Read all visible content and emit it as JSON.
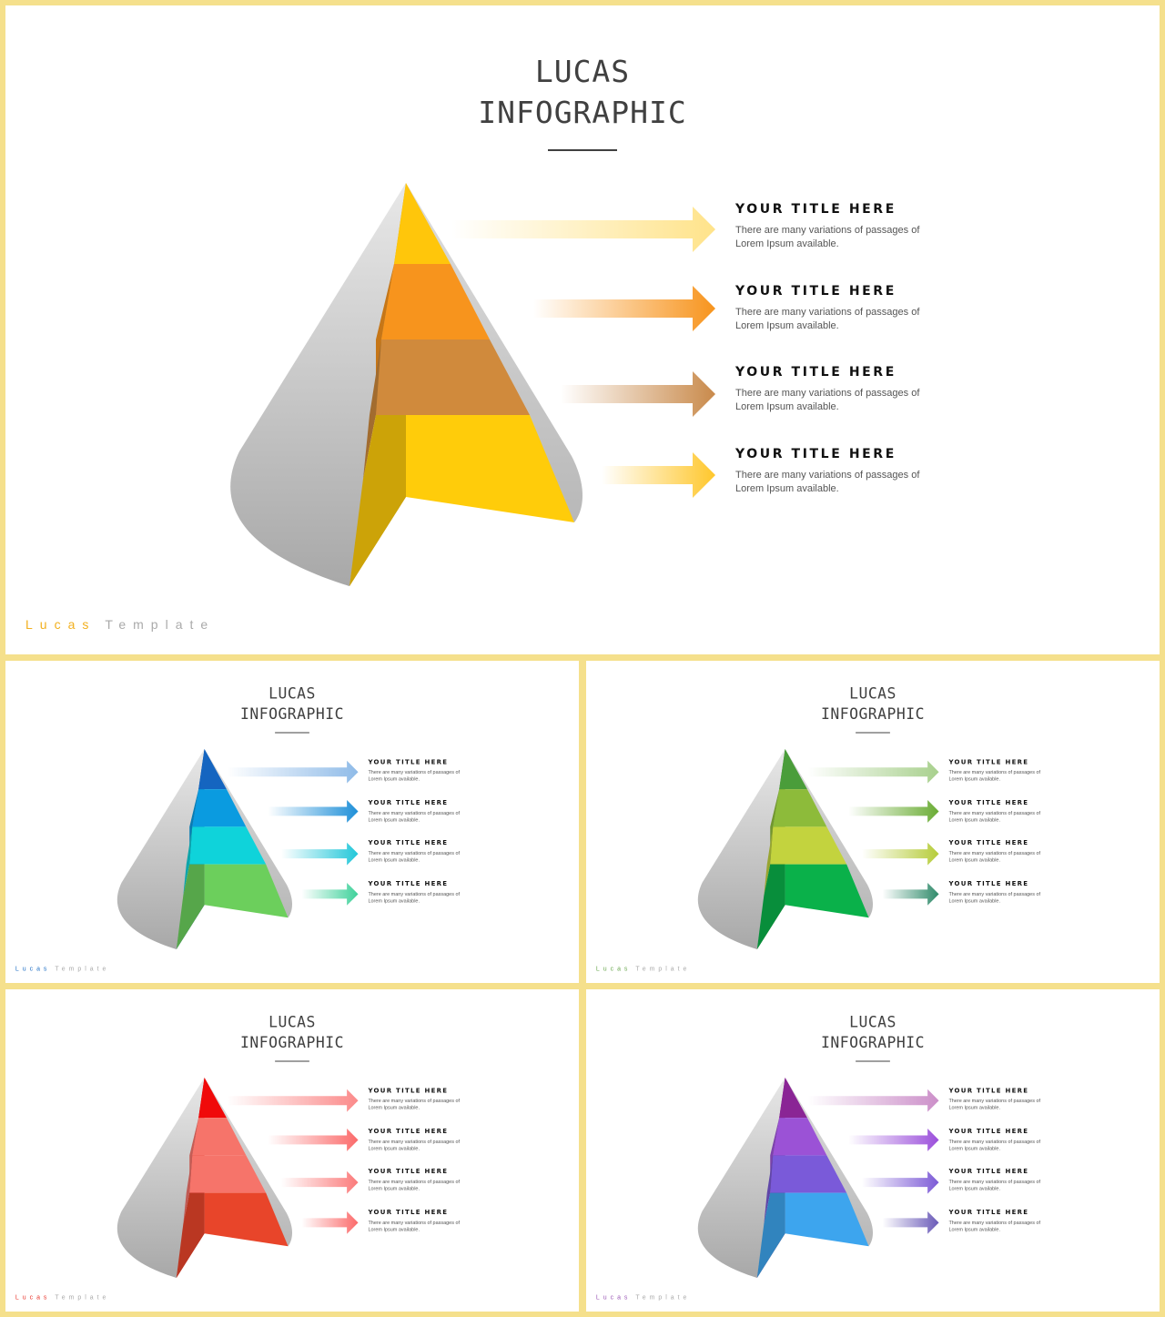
{
  "title_line1": "LUCAS",
  "title_line2": "INFOGRAPHIC",
  "footer": {
    "brand": "Lucas",
    "template": "Template"
  },
  "items": [
    {
      "title": "YOUR TITLE HERE",
      "desc": "There are many variations of passages of Lorem Ipsum available."
    },
    {
      "title": "YOUR TITLE HERE",
      "desc": "There are many variations of passages of Lorem Ipsum available."
    },
    {
      "title": "YOUR TITLE HERE",
      "desc": "There are many variations of passages of Lorem Ipsum available."
    },
    {
      "title": "YOUR TITLE HERE",
      "desc": "There are many variations of passages of Lorem Ipsum available."
    }
  ],
  "slides": [
    {
      "name": "yellow",
      "brand_color": "#f2b01e",
      "layers": [
        "#ffc60b",
        "#f7941d",
        "#d08a3c",
        "#ffcc0a"
      ],
      "arrows": [
        "#ffe38a",
        "#f7941d",
        "#c98a4b",
        "#ffc72c"
      ]
    },
    {
      "name": "blue",
      "brand_color": "#1f6fc5",
      "layers": [
        "#1565c0",
        "#0a9be0",
        "#0fd3da",
        "#6ccf5c"
      ],
      "arrows": [
        "#8fbbe8",
        "#1e8fd8",
        "#22c7d9",
        "#3ed19a"
      ]
    },
    {
      "name": "green",
      "brand_color": "#6aa84f",
      "layers": [
        "#4a9d3a",
        "#8dbb3a",
        "#c3d33e",
        "#0ab14a"
      ],
      "arrows": [
        "#a8d08d",
        "#6aac34",
        "#b6cc3a",
        "#2f8a6a"
      ]
    },
    {
      "name": "red",
      "brand_color": "#e8332a",
      "layers": [
        "#f00a0a",
        "#f6746a",
        "#f6746a",
        "#e8452a"
      ],
      "arrows": [
        "#fb8a8a",
        "#fb6a6a",
        "#fb7a7a",
        "#fb6a6a"
      ]
    },
    {
      "name": "purple",
      "brand_color": "#9b59b6",
      "layers": [
        "#8a2595",
        "#9b52d6",
        "#7a5ad9",
        "#3da5ee"
      ],
      "arrows": [
        "#cc8fc9",
        "#9b4fdb",
        "#7c5ad6",
        "#6a5ab8"
      ]
    }
  ]
}
